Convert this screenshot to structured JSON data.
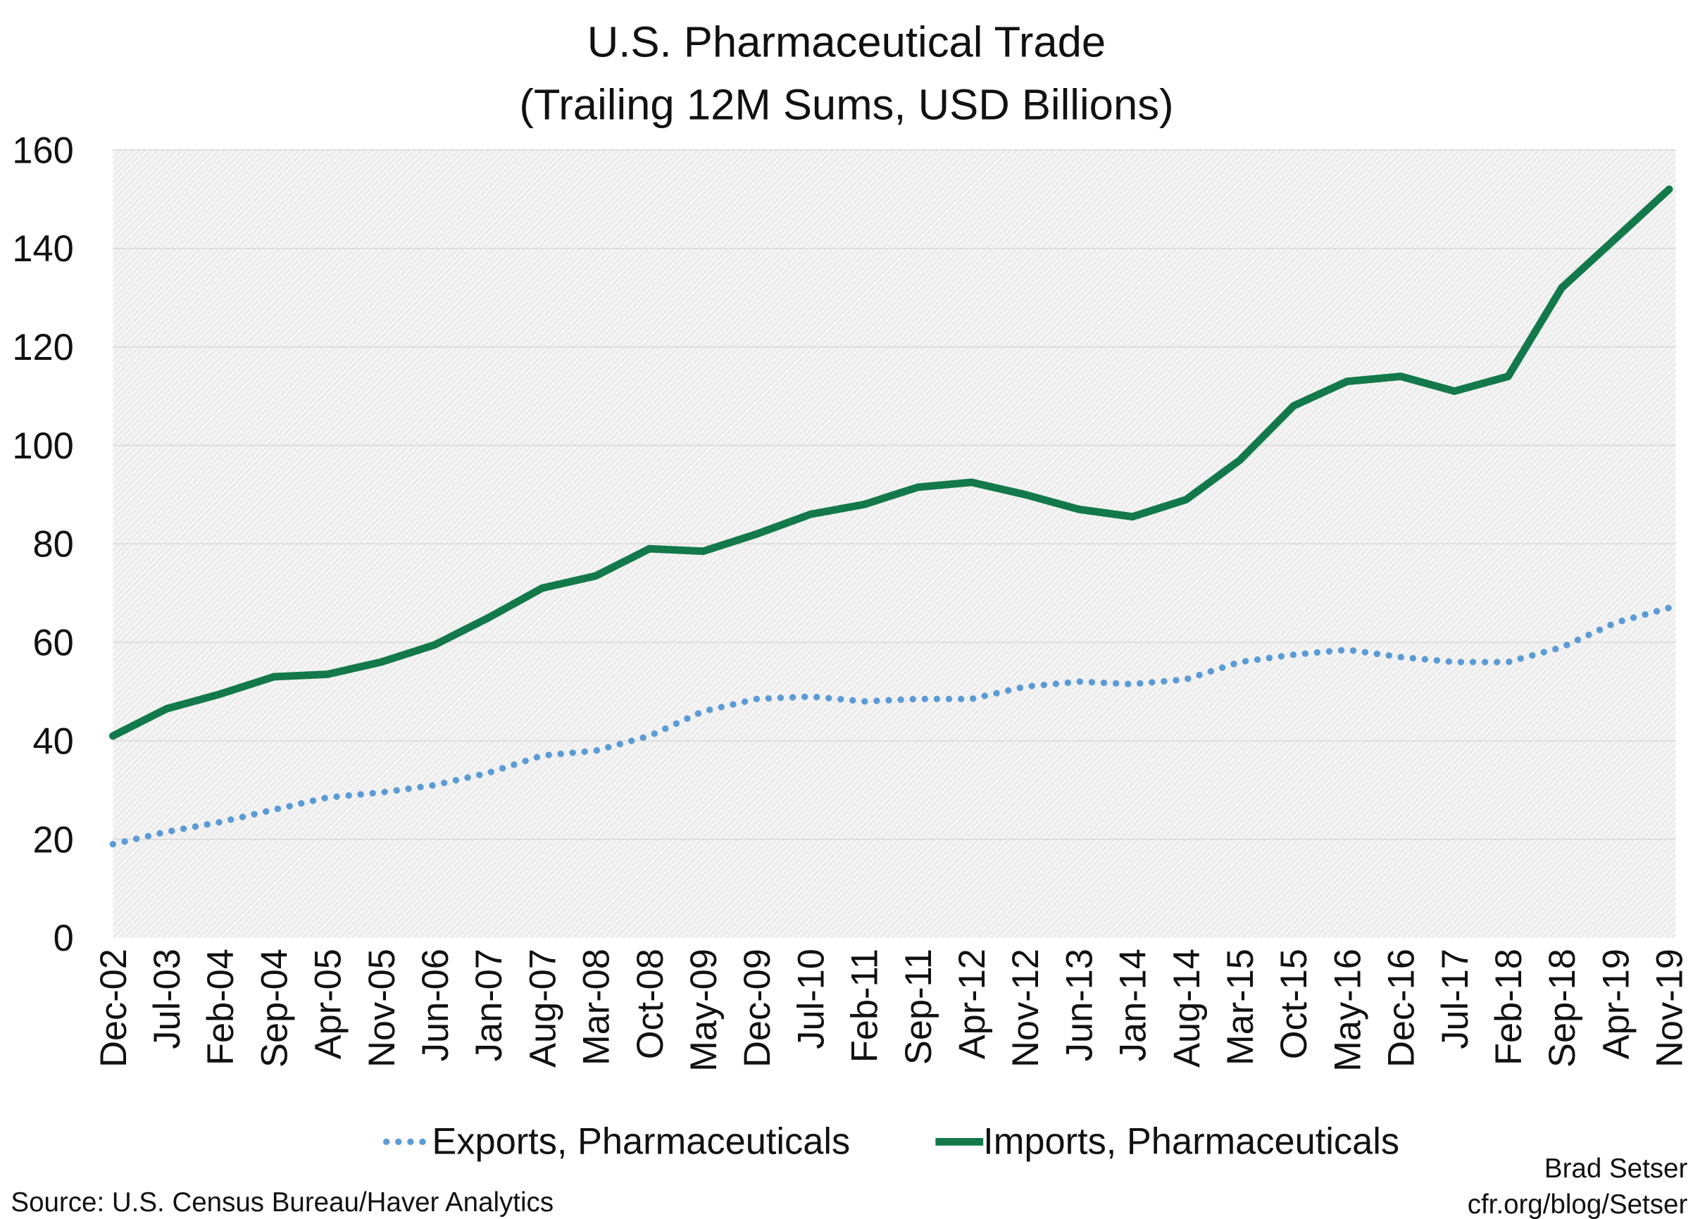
{
  "chart_data": {
    "type": "line",
    "title": "U.S. Pharmaceutical Trade",
    "subtitle": "(Trailing 12M Sums, USD Billions)",
    "xlabel": "",
    "ylabel": "",
    "ylim": [
      0,
      160
    ],
    "yticks": [
      0,
      20,
      40,
      60,
      80,
      100,
      120,
      140,
      160
    ],
    "grid": true,
    "legend_position": "bottom",
    "categories": [
      "Dec-02",
      "Jul-03",
      "Feb-04",
      "Sep-04",
      "Apr-05",
      "Nov-05",
      "Jun-06",
      "Jan-07",
      "Aug-07",
      "Mar-08",
      "Oct-08",
      "May-09",
      "Dec-09",
      "Jul-10",
      "Feb-11",
      "Sep-11",
      "Apr-12",
      "Nov-12",
      "Jun-13",
      "Jan-14",
      "Aug-14",
      "Mar-15",
      "Oct-15",
      "May-16",
      "Dec-16",
      "Jul-17",
      "Feb-18",
      "Sep-18",
      "Apr-19",
      "Nov-19"
    ],
    "series": [
      {
        "name": "Exports, Pharmaceuticals",
        "color": "#5b9bd5",
        "style": "dotted",
        "values": [
          19,
          21.5,
          23.5,
          26,
          28.5,
          29.5,
          31,
          33.5,
          37,
          38,
          41,
          46,
          48.5,
          49,
          48,
          48.5,
          48.5,
          51,
          52,
          51.5,
          52.5,
          56,
          57.5,
          58.5,
          57,
          56,
          56,
          59,
          64,
          67
        ]
      },
      {
        "name": "Imports, Pharmaceuticals",
        "color": "#13794a",
        "style": "solid",
        "values": [
          41,
          46.5,
          49.5,
          53,
          53.5,
          56,
          59.5,
          65,
          71,
          73.5,
          79,
          78.5,
          82,
          86,
          88,
          91.5,
          92.5,
          90,
          87,
          85.5,
          89,
          97,
          108,
          113,
          114,
          111,
          114,
          132,
          142,
          152
        ]
      }
    ]
  },
  "footer": {
    "source": "Source: U.S. Census Bureau/Haver Analytics",
    "author": "Brad Setser",
    "url": "cfr.org/blog/Setser"
  }
}
